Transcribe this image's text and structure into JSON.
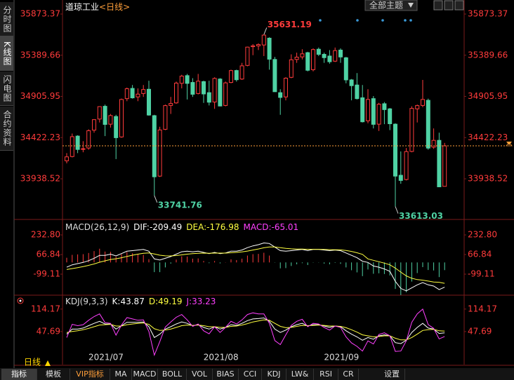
{
  "ui": {
    "side_tabs": [
      "分时图",
      "K线图",
      "闪电图",
      "合约资料"
    ],
    "theme_button": "全部主题",
    "period": "日线",
    "tabs": [
      "指标",
      "模板",
      "VIP指标",
      "MA",
      "MACD",
      "BOLL",
      "VOL",
      "BIAS",
      "CCI",
      "KDJ",
      "LW&",
      "RSI",
      "CR",
      "设置"
    ]
  },
  "chart_data": [
    {
      "type": "candlestick",
      "title": "道琼工业",
      "subtitle": "<日线>",
      "up_color": "#ff3b3b",
      "down_color": "#4fd2a4",
      "categories": [
        null,
        null,
        null,
        null,
        null,
        "2021/07",
        null,
        null,
        null,
        null,
        null,
        null,
        null,
        null,
        null,
        null,
        null,
        null,
        null,
        null,
        null,
        null,
        null,
        null,
        null,
        null,
        "2021/08",
        null,
        null,
        null,
        null,
        null,
        null,
        null,
        null,
        null,
        null,
        null,
        null,
        null,
        null,
        null,
        null,
        null,
        null,
        null,
        null,
        null,
        "2021/09",
        null,
        null,
        null,
        null,
        null,
        null,
        null,
        null,
        null,
        null,
        null,
        null,
        null,
        null,
        null,
        null,
        null,
        null,
        null,
        null,
        null
      ],
      "ohlc": [
        [
          34150,
          34240,
          34120,
          34196
        ],
        [
          34200,
          34470,
          34190,
          34433
        ],
        [
          34440,
          34450,
          34240,
          34283
        ],
        [
          34290,
          34380,
          34250,
          34292
        ],
        [
          34300,
          34520,
          34280,
          34503
        ],
        [
          34510,
          34640,
          34480,
          34633
        ],
        [
          34640,
          34790,
          34600,
          34786
        ],
        [
          34790,
          34810,
          34440,
          34577
        ],
        [
          34580,
          34700,
          34540,
          34681
        ],
        [
          34670,
          34690,
          34170,
          34421
        ],
        [
          34430,
          34880,
          34420,
          34870
        ],
        [
          34880,
          35010,
          34850,
          34996
        ],
        [
          35000,
          35040,
          34880,
          34889
        ],
        [
          34900,
          35000,
          34850,
          34933
        ],
        [
          34940,
          35040,
          34900,
          34987
        ],
        [
          34990,
          35090,
          34680,
          34687
        ],
        [
          34680,
          34690,
          33741.76,
          33962
        ],
        [
          33970,
          34550,
          33960,
          34512
        ],
        [
          34520,
          34810,
          34510,
          34798
        ],
        [
          34800,
          34900,
          34700,
          34823
        ],
        [
          34830,
          35080,
          34820,
          35062
        ],
        [
          35060,
          35160,
          35000,
          35144
        ],
        [
          35150,
          35170,
          34870,
          35059
        ],
        [
          35070,
          35120,
          34900,
          34931
        ],
        [
          34940,
          35170,
          34930,
          35085
        ],
        [
          35080,
          35090,
          34830,
          34935
        ],
        [
          34950,
          35090,
          34800,
          34838
        ],
        [
          34840,
          35130,
          34760,
          35117
        ],
        [
          35110,
          35120,
          34790,
          34793
        ],
        [
          34800,
          35080,
          34790,
          35065
        ],
        [
          35070,
          35220,
          35060,
          35209
        ],
        [
          35210,
          35220,
          35080,
          35102
        ],
        [
          35110,
          35300,
          35100,
          35265
        ],
        [
          35270,
          35490,
          35260,
          35485
        ],
        [
          35490,
          35520,
          35390,
          35500
        ],
        [
          35500,
          35530,
          35450,
          35515
        ],
        [
          35510,
          35631.19,
          35380,
          35626
        ],
        [
          35590,
          35600,
          35220,
          35343
        ],
        [
          35340,
          35370,
          34960,
          34961
        ],
        [
          34950,
          34990,
          34690,
          34894
        ],
        [
          34900,
          35130,
          34860,
          35120
        ],
        [
          35130,
          35400,
          35120,
          35336
        ],
        [
          35340,
          35420,
          35300,
          35367
        ],
        [
          35370,
          35460,
          35340,
          35406
        ],
        [
          35420,
          35430,
          35200,
          35213
        ],
        [
          35220,
          35470,
          35200,
          35456
        ],
        [
          35460,
          35480,
          35380,
          35400
        ],
        [
          35400,
          35420,
          35300,
          35361
        ],
        [
          35380,
          35450,
          35290,
          35313
        ],
        [
          35320,
          35480,
          35310,
          35444
        ],
        [
          35450,
          35470,
          35300,
          35369
        ],
        [
          35360,
          35370,
          35060,
          35100
        ],
        [
          35100,
          35110,
          34860,
          35032
        ],
        [
          35040,
          35180,
          34870,
          34880
        ],
        [
          34890,
          35040,
          34600,
          34608
        ],
        [
          34620,
          34990,
          34590,
          34870
        ],
        [
          34880,
          34910,
          34530,
          34578
        ],
        [
          34580,
          34830,
          34500,
          34814
        ],
        [
          34820,
          34840,
          34580,
          34751
        ],
        [
          34760,
          34770,
          34510,
          34585
        ],
        [
          34580,
          34590,
          33613.03,
          33970
        ],
        [
          33980,
          34260,
          33880,
          33919
        ],
        [
          33930,
          34300,
          33920,
          34258
        ],
        [
          34260,
          34790,
          34250,
          34765
        ],
        [
          34760,
          34810,
          34600,
          34798
        ],
        [
          34800,
          35100,
          34780,
          34870
        ],
        [
          34860,
          34880,
          34280,
          34299
        ],
        [
          34310,
          34530,
          34290,
          34390
        ],
        [
          34390,
          34480,
          33840,
          33844
        ],
        [
          33850,
          34360,
          33850,
          34326
        ]
      ],
      "ylim": [
        33527,
        35997
      ],
      "yticks": [
        35873.37,
        35389.66,
        34905.95,
        34422.23,
        33938.52
      ],
      "last_line_color": "#ff9f3a"
    },
    {
      "type": "macd",
      "title": "MACD(26,12,9)",
      "ylim": [
        -271,
        334
      ],
      "yticks": [
        {
          "value": 232.8,
          "label": "232.80"
        },
        66.84,
        -99.11
      ],
      "series": [
        {
          "name": "DIF:",
          "color": "#ffffff",
          "values": [
            -40,
            -20,
            -10,
            0,
            15,
            35,
            60,
            60,
            70,
            55,
            75,
            95,
            100,
            105,
            110,
            95,
            30,
            20,
            35,
            50,
            70,
            90,
            95,
            90,
            95,
            85,
            75,
            85,
            75,
            80,
            95,
            95,
            105,
            125,
            140,
            150,
            165,
            160,
            130,
            100,
            95,
            100,
            105,
            110,
            100,
            110,
            110,
            105,
            100,
            105,
            100,
            80,
            60,
            40,
            10,
            0,
            -30,
            -40,
            -55,
            -75,
            -160,
            -220,
            -240,
            -215,
            -190,
            -170,
            -190,
            -200,
            -230,
            -209.49
          ]
        },
        {
          "name": "DEA:",
          "color": "#ffff40",
          "values": [
            -60,
            -52,
            -44,
            -35,
            -25,
            -13,
            2,
            14,
            25,
            31,
            40,
            51,
            61,
            70,
            78,
            81,
            71,
            61,
            56,
            55,
            58,
            64,
            70,
            74,
            78,
            79,
            78,
            79,
            79,
            79,
            82,
            85,
            89,
            96,
            105,
            114,
            124,
            131,
            131,
            125,
            119,
            115,
            113,
            113,
            111,
            111,
            111,
            110,
            108,
            107,
            106,
            101,
            93,
            82,
            68,
            30,
            18,
            6,
            -6,
            -20,
            -48,
            -82,
            -114,
            -134,
            -145,
            -150,
            -158,
            -166,
            -168,
            -176.98
          ]
        },
        {
          "name": "MACD:",
          "color": "#ff40ff",
          "pos_color": "#ff3b3b",
          "neg_color": "#4fd2a4",
          "values": [
            40,
            64,
            68,
            70,
            80,
            96,
            116,
            92,
            90,
            48,
            70,
            88,
            78,
            70,
            64,
            28,
            -82,
            -82,
            -42,
            -10,
            24,
            52,
            50,
            32,
            34,
            12,
            -6,
            12,
            -8,
            2,
            26,
            20,
            32,
            58,
            70,
            72,
            82,
            58,
            -2,
            -50,
            -48,
            -30,
            -16,
            -6,
            -22,
            -2,
            -2,
            -10,
            -16,
            -4,
            -12,
            -42,
            -66,
            -84,
            -116,
            -60,
            -96,
            -92,
            -98,
            -110,
            -224,
            -276,
            -252,
            -162,
            -90,
            -40,
            -64,
            -68,
            -124,
            -65.01
          ]
        }
      ]
    },
    {
      "type": "kdj",
      "title": "KDJ(9,3,3)",
      "ylim": [
        -50,
        147
      ],
      "yticks": [
        114.17,
        47.69
      ],
      "series": [
        {
          "name": "K:",
          "color": "#ffffff",
          "values": [
            40,
            55,
            55,
            58,
            65,
            72,
            78,
            70,
            70,
            55,
            65,
            75,
            75,
            75,
            76,
            62,
            30,
            40,
            55,
            62,
            70,
            76,
            72,
            65,
            68,
            60,
            55,
            62,
            55,
            60,
            68,
            66,
            72,
            80,
            85,
            86,
            88,
            78,
            55,
            45,
            52,
            62,
            68,
            72,
            64,
            68,
            68,
            64,
            60,
            64,
            62,
            50,
            40,
            32,
            22,
            30,
            25,
            35,
            38,
            35,
            15,
            12,
            22,
            45,
            60,
            72,
            58,
            55,
            42,
            43.87
          ]
        },
        {
          "name": "D:",
          "color": "#ffff40",
          "values": [
            45,
            48,
            50,
            53,
            57,
            62,
            67,
            68,
            69,
            64,
            64,
            68,
            70,
            72,
            73,
            69,
            56,
            51,
            52,
            55,
            60,
            65,
            67,
            66,
            67,
            65,
            62,
            62,
            60,
            60,
            63,
            64,
            67,
            71,
            76,
            79,
            82,
            81,
            72,
            63,
            59,
            60,
            63,
            66,
            65,
            66,
            67,
            66,
            64,
            64,
            63,
            59,
            53,
            46,
            38,
            35,
            32,
            33,
            35,
            35,
            28,
            23,
            23,
            30,
            40,
            51,
            53,
            54,
            50,
            49.19
          ]
        },
        {
          "name": "J:",
          "color": "#ff40ff",
          "values": [
            30,
            69,
            65,
            68,
            81,
            92,
            100,
            74,
            72,
            37,
            67,
            89,
            85,
            81,
            82,
            48,
            -22,
            18,
            61,
            76,
            90,
            98,
            82,
            63,
            70,
            50,
            41,
            62,
            45,
            60,
            78,
            70,
            82,
            98,
            103,
            100,
            100,
            72,
            21,
            9,
            38,
            66,
            78,
            84,
            62,
            72,
            70,
            60,
            52,
            64,
            60,
            32,
            14,
            4,
            -10,
            20,
            11,
            39,
            44,
            35,
            -11,
            -10,
            20,
            75,
            100,
            114,
            68,
            57,
            26,
            33.23
          ]
        }
      ]
    }
  ]
}
